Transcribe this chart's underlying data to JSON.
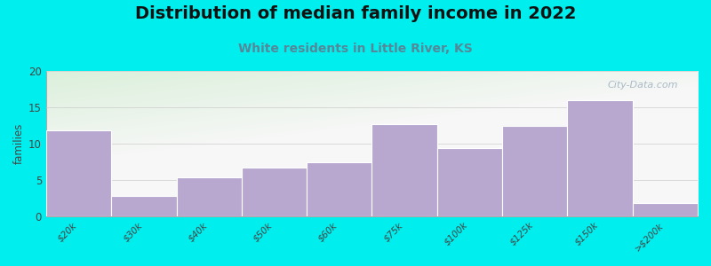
{
  "title": "Distribution of median family income in 2022",
  "subtitle": "White residents in Little River, KS",
  "categories": [
    "$20k",
    "$30k",
    "$40k",
    "$50k",
    "$60k",
    "$75k",
    "$100k",
    "$125k",
    "$150k",
    ">$200k"
  ],
  "values": [
    11.8,
    2.8,
    5.4,
    6.7,
    7.4,
    12.7,
    9.4,
    12.4,
    16,
    1.8
  ],
  "bar_color": "#b8a8d0",
  "bar_edge_color": "#ffffff",
  "ylabel": "families",
  "ylim": [
    0,
    20
  ],
  "yticks": [
    0,
    5,
    10,
    15,
    20
  ],
  "background_outer": "#00eeee",
  "background_plot_topleft": "#d8edd8",
  "background_plot_right": "#f0eeee",
  "background_plot_bottom": "#f8f8f8",
  "title_fontsize": 14,
  "title_color": "#111111",
  "subtitle_fontsize": 10,
  "subtitle_color": "#558899",
  "watermark_text": "City-Data.com",
  "watermark_color": "#99aabb"
}
